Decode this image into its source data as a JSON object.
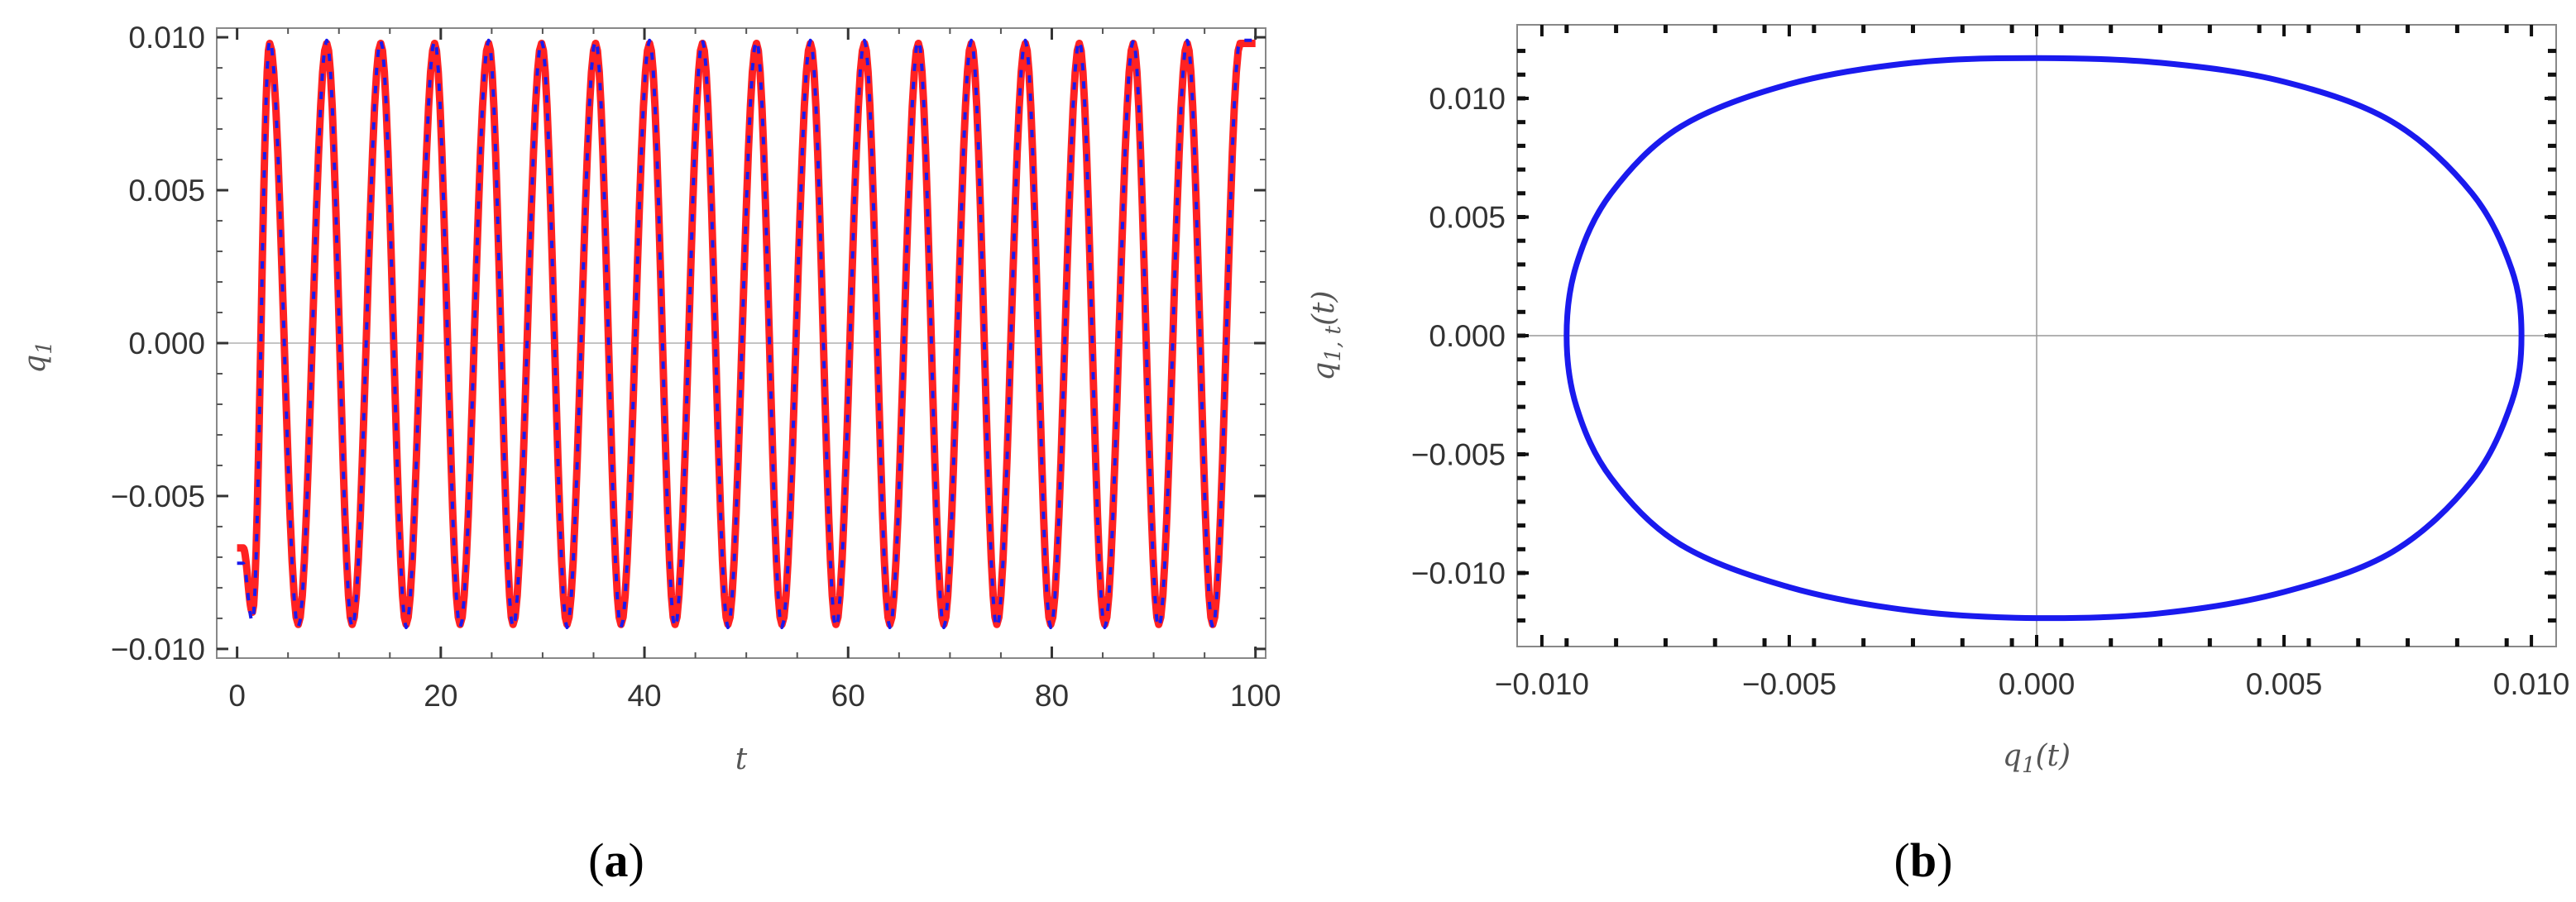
{
  "panels": [
    {
      "label_open": "(",
      "label_letter": "a",
      "label_close": ")"
    },
    {
      "label_open": "(",
      "label_letter": "b",
      "label_close": ")"
    }
  ],
  "chart_data": [
    {
      "type": "line",
      "title": "",
      "xlabel": "t",
      "ylabel_main": "q",
      "ylabel_sub": "1",
      "xlim": [
        -2,
        101
      ],
      "ylim": [
        -0.0103,
        0.0103
      ],
      "x_ticks": [
        0,
        20,
        40,
        60,
        80,
        100
      ],
      "x_tick_labels": [
        "0",
        "20",
        "40",
        "60",
        "80",
        "100"
      ],
      "y_ticks": [
        -0.01,
        -0.005,
        0,
        0.005,
        0.01
      ],
      "y_tick_labels": [
        "−0.010",
        "−0.005",
        "0.000",
        "0.005",
        "0.010"
      ],
      "grid": false,
      "series": [
        {
          "color": "#ff2222",
          "style": "solid",
          "x": [
            0,
            0.6,
            1.5,
            3.2,
            6.0,
            8.8,
            11.3,
            14.1,
            16.6,
            19.4,
            21.9,
            24.7,
            27.1,
            29.9,
            32.4,
            35.2,
            37.7,
            40.5,
            43.0,
            45.7,
            48.2,
            51.0,
            53.5,
            56.3,
            58.8,
            61.6,
            64.1,
            66.9,
            69.4,
            72.1,
            74.6,
            77.4,
            79.9,
            82.7,
            85.2,
            88.0,
            90.5,
            93.3,
            95.8,
            98.5,
            100
          ],
          "y": [
            -0.0067,
            -0.0067,
            -0.0088,
            0.0098,
            -0.0092,
            0.0098,
            -0.0092,
            0.0098,
            -0.0092,
            0.0098,
            -0.0092,
            0.0098,
            -0.0092,
            0.0098,
            -0.0092,
            0.0098,
            -0.0092,
            0.0098,
            -0.0092,
            0.0098,
            -0.0092,
            0.0098,
            -0.0092,
            0.0098,
            -0.0092,
            0.0098,
            -0.0092,
            0.0098,
            -0.0092,
            0.0098,
            -0.0092,
            0.0098,
            -0.0092,
            0.0098,
            -0.0092,
            0.0098,
            -0.0092,
            0.0098,
            -0.0092,
            0.0098,
            0.0098
          ]
        },
        {
          "color": "#1a1aee",
          "style": "dashed",
          "x": [
            0,
            0.6,
            1.5,
            3.2,
            6.0,
            8.8,
            11.3,
            14.1,
            16.6,
            19.4,
            21.9,
            24.7,
            27.1,
            29.9,
            32.4,
            35.2,
            37.7,
            40.5,
            43.0,
            45.7,
            48.2,
            51.0,
            53.5,
            56.3,
            58.8,
            61.6,
            64.1,
            66.9,
            69.4,
            72.1,
            74.6,
            77.4,
            79.9,
            82.7,
            85.2,
            88.0,
            90.5,
            93.3,
            95.8,
            98.5,
            100
          ],
          "y": [
            -0.0072,
            -0.0072,
            -0.0091,
            0.0099,
            -0.0093,
            0.0099,
            -0.0093,
            0.0099,
            -0.0093,
            0.0099,
            -0.0093,
            0.0099,
            -0.0093,
            0.0099,
            -0.0093,
            0.0099,
            -0.0093,
            0.0099,
            -0.0093,
            0.0099,
            -0.0093,
            0.0099,
            -0.0093,
            0.0099,
            -0.0093,
            0.0099,
            -0.0093,
            0.0099,
            -0.0093,
            0.0099,
            -0.0093,
            0.0099,
            -0.0093,
            0.0099,
            -0.0093,
            0.0099,
            -0.0093,
            0.0099,
            -0.0093,
            0.0099,
            0.0099
          ]
        }
      ]
    },
    {
      "type": "line",
      "title": "",
      "xlabel_main": "q",
      "xlabel_sub": "1",
      "xlabel_tail": "(t)",
      "ylabel_main": "q",
      "ylabel_sub": "1, t",
      "ylabel_tail": "(t)",
      "xlim": [
        -0.0105,
        0.0105
      ],
      "ylim": [
        -0.0131,
        0.0131
      ],
      "x_ticks": [
        -0.01,
        -0.005,
        0,
        0.005,
        0.01
      ],
      "x_tick_labels": [
        "−0.010",
        "−0.005",
        "0.000",
        "0.005",
        "0.010"
      ],
      "y_ticks": [
        -0.01,
        -0.005,
        0,
        0.005,
        0.01
      ],
      "y_tick_labels": [
        "−0.010",
        "−0.005",
        "0.000",
        "0.005",
        "0.010"
      ],
      "grid": false,
      "series": [
        {
          "color": "#1a1aee",
          "style": "solid",
          "x": [
            0.0098,
            0.0096,
            0.0088,
            0.0072,
            0.005,
            0.0025,
            0.0,
            -0.0025,
            -0.005,
            -0.0072,
            -0.0086,
            -0.0093,
            -0.0095,
            -0.0093,
            -0.0086,
            -0.0072,
            -0.005,
            -0.0025,
            0.0,
            0.0025,
            0.005,
            0.0072,
            0.0088,
            0.0096,
            0.0098
          ],
          "y": [
            0.0,
            0.0028,
            0.006,
            0.009,
            0.0107,
            0.0115,
            0.0117,
            0.0115,
            0.0106,
            0.0088,
            0.006,
            0.003,
            0.0,
            -0.003,
            -0.006,
            -0.0088,
            -0.0106,
            -0.0116,
            -0.0119,
            -0.0117,
            -0.0108,
            -0.0091,
            -0.0061,
            -0.0028,
            0.0
          ]
        }
      ]
    }
  ]
}
